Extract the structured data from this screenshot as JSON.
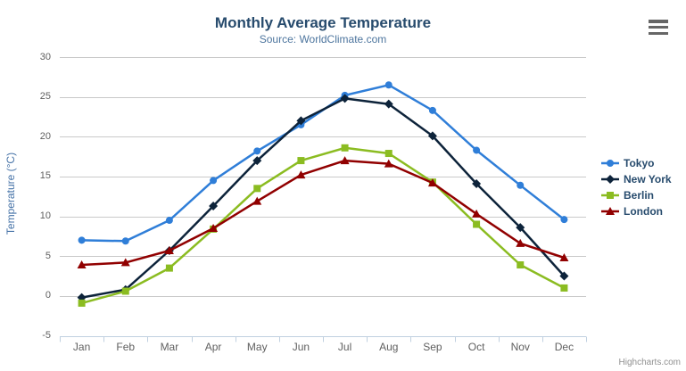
{
  "chart_data": {
    "type": "line",
    "title": "Monthly Average Temperature",
    "subtitle": "Source: WorldClimate.com",
    "categories": [
      "Jan",
      "Feb",
      "Mar",
      "Apr",
      "May",
      "Jun",
      "Jul",
      "Aug",
      "Sep",
      "Oct",
      "Nov",
      "Dec"
    ],
    "series": [
      {
        "name": "Tokyo",
        "marker": "circle",
        "color": "#2f7ed8",
        "values": [
          7.0,
          6.9,
          9.5,
          14.5,
          18.2,
          21.5,
          25.2,
          26.5,
          23.3,
          18.3,
          13.9,
          9.6
        ]
      },
      {
        "name": "New York",
        "marker": "diamond",
        "color": "#0d233a",
        "values": [
          -0.2,
          0.8,
          5.7,
          11.3,
          17.0,
          22.0,
          24.8,
          24.1,
          20.1,
          14.1,
          8.6,
          2.5
        ]
      },
      {
        "name": "Berlin",
        "marker": "square",
        "color": "#8bbc21",
        "values": [
          -0.9,
          0.6,
          3.5,
          8.4,
          13.5,
          17.0,
          18.6,
          17.9,
          14.3,
          9.0,
          3.9,
          1.0
        ]
      },
      {
        "name": "London",
        "marker": "triangle",
        "color": "#910000",
        "values": [
          3.9,
          4.2,
          5.7,
          8.5,
          11.9,
          15.2,
          17.0,
          16.6,
          14.2,
          10.3,
          6.6,
          4.8
        ]
      }
    ],
    "xlabel": "",
    "ylabel": "Temperature (°C)",
    "ylim": [
      -5,
      30
    ],
    "yticks": [
      30,
      25,
      20,
      15,
      10,
      5,
      0,
      -5
    ],
    "grid": true,
    "legend_position": "right"
  },
  "credits": {
    "label": "Highcharts.com"
  },
  "colors": {
    "title": "#274b6d",
    "subtitle": "#4d759e",
    "axis_title": "#4572a7",
    "axis_labels": "#606060",
    "grid_line": "#c9c9c9",
    "axis_line": "#c0d0e0",
    "legend_text": "#274b6d",
    "credits": "#909090",
    "menu_icon": "#666666",
    "background": "#ffffff"
  }
}
